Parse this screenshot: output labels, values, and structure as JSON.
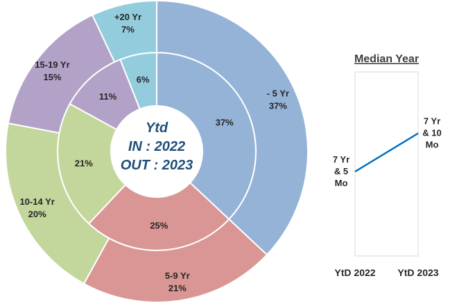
{
  "chart_data": [
    {
      "type": "pie",
      "variant": "double-donut",
      "center_label": [
        "Ytd",
        "IN : 2022",
        "OUT : 2023"
      ],
      "categories": [
        "- 5 Yr",
        "5-9 Yr",
        "10-14 Yr",
        "15-19 Yr",
        "+20 Yr"
      ],
      "colors": {
        "outer": [
          "#95B3D7",
          "#D99694",
          "#C3D69B",
          "#B3A2C7",
          "#93CDDD"
        ],
        "inner": [
          "#95B3D7",
          "#D99694",
          "#C3D69B",
          "#B3A2C7",
          "#93CDDD"
        ]
      },
      "series": [
        {
          "ring": "inner",
          "values": [
            37,
            25,
            21,
            11,
            6
          ],
          "labels": [
            "37%",
            "25%",
            "21%",
            "11%",
            "6%"
          ]
        },
        {
          "ring": "outer",
          "values": [
            37,
            21,
            20,
            15,
            7
          ],
          "labels": [
            [
              "- 5 Yr",
              "37%"
            ],
            [
              "5-9 Yr",
              "21%"
            ],
            [
              "10-14 Yr",
              "20%"
            ],
            [
              "15-19 Yr",
              "15%"
            ],
            [
              "+20 Yr",
              "7%"
            ]
          ]
        }
      ]
    },
    {
      "type": "line",
      "title": "Median Year",
      "categories": [
        "YtD 2022",
        "YtD 2023"
      ],
      "values": [
        7.4167,
        7.8333
      ],
      "data_labels": [
        [
          "7 Yr",
          "& 5",
          "Mo"
        ],
        [
          "7 Yr",
          "& 10",
          "Mo"
        ]
      ],
      "ylim": [
        6.5,
        8.5
      ],
      "line_color": "#0070C0"
    }
  ]
}
